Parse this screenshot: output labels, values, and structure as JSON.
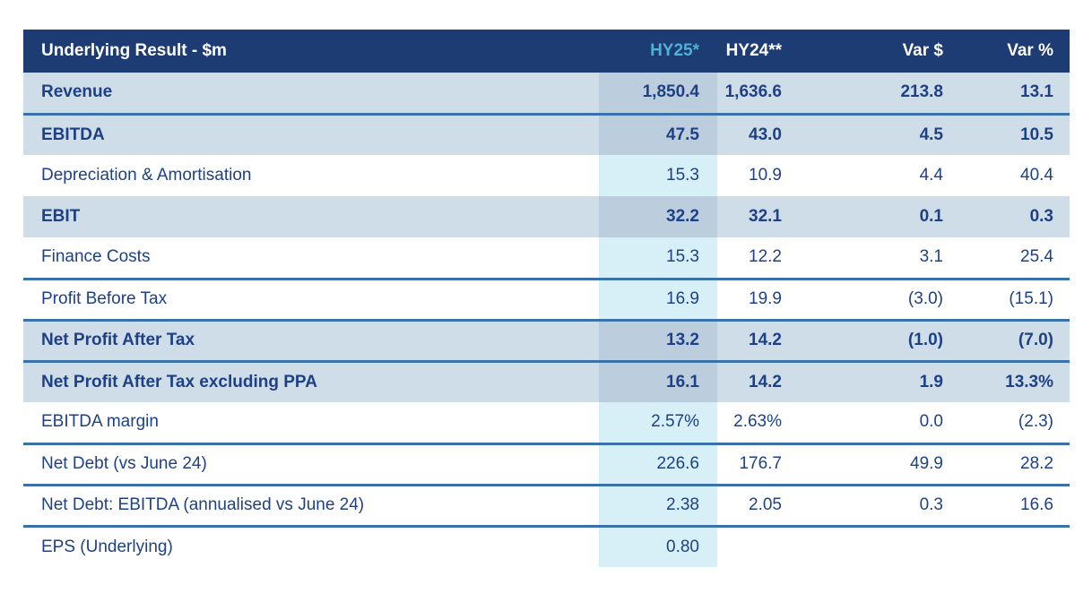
{
  "table": {
    "title": "Underlying Result - $m",
    "columns": [
      "HY25*",
      "HY24**",
      "Var $",
      "Var %"
    ],
    "rows": [
      {
        "label": "Revenue",
        "values": [
          "1,850.4",
          "1,636.6",
          "213.8",
          "13.1"
        ],
        "bold": true,
        "shaded": true,
        "line_below": true
      },
      {
        "label": "EBITDA",
        "values": [
          "47.5",
          "43.0",
          "4.5",
          "10.5"
        ],
        "bold": true,
        "shaded": true,
        "line_below": false
      },
      {
        "label": "Depreciation & Amortisation",
        "values": [
          "15.3",
          "10.9",
          "4.4",
          "40.4"
        ],
        "bold": false,
        "shaded": false,
        "line_below": false
      },
      {
        "label": "EBIT",
        "values": [
          "32.2",
          "32.1",
          "0.1",
          "0.3"
        ],
        "bold": true,
        "shaded": true,
        "line_below": false
      },
      {
        "label": "Finance Costs",
        "values": [
          "15.3",
          "12.2",
          "3.1",
          "25.4"
        ],
        "bold": false,
        "shaded": false,
        "line_below": true
      },
      {
        "label": "Profit Before Tax",
        "values": [
          "16.9",
          "19.9",
          "(3.0)",
          "(15.1)"
        ],
        "bold": false,
        "shaded": false,
        "line_below": true
      },
      {
        "label": "Net Profit After Tax",
        "values": [
          "13.2",
          "14.2",
          "(1.0)",
          "(7.0)"
        ],
        "bold": true,
        "shaded": true,
        "line_below": true
      },
      {
        "label": "Net Profit After Tax excluding PPA",
        "values": [
          "16.1",
          "14.2",
          "1.9",
          "13.3%"
        ],
        "bold": true,
        "shaded": true,
        "line_below": false
      },
      {
        "label": "EBITDA margin",
        "values": [
          "2.57%",
          "2.63%",
          "0.0",
          "(2.3)"
        ],
        "bold": false,
        "shaded": false,
        "line_below": true
      },
      {
        "label": "Net Debt (vs June 24)",
        "values": [
          "226.6",
          "176.7",
          "49.9",
          "28.2"
        ],
        "bold": false,
        "shaded": false,
        "line_below": true
      },
      {
        "label": "Net Debt: EBITDA (annualised vs June 24)",
        "values": [
          "2.38",
          "2.05",
          "0.3",
          "16.6"
        ],
        "bold": false,
        "shaded": false,
        "line_below": true
      },
      {
        "label": "EPS (Underlying)",
        "values": [
          "0.80",
          "",
          "",
          ""
        ],
        "bold": false,
        "shaded": false,
        "line_below": false
      }
    ],
    "colors": {
      "header_bg": "#1d3c73",
      "header_text": "#ffffff",
      "hy25_header_text": "#4cb2d8",
      "shaded_row_bg": "#cfdde9",
      "hy25_cell_on_shaded": "#bccede",
      "hy25_cell_on_white": "#d7eff6",
      "body_text": "#1e4186",
      "separator_line": "#3a71a9",
      "page_bg": "#ffffff"
    }
  }
}
